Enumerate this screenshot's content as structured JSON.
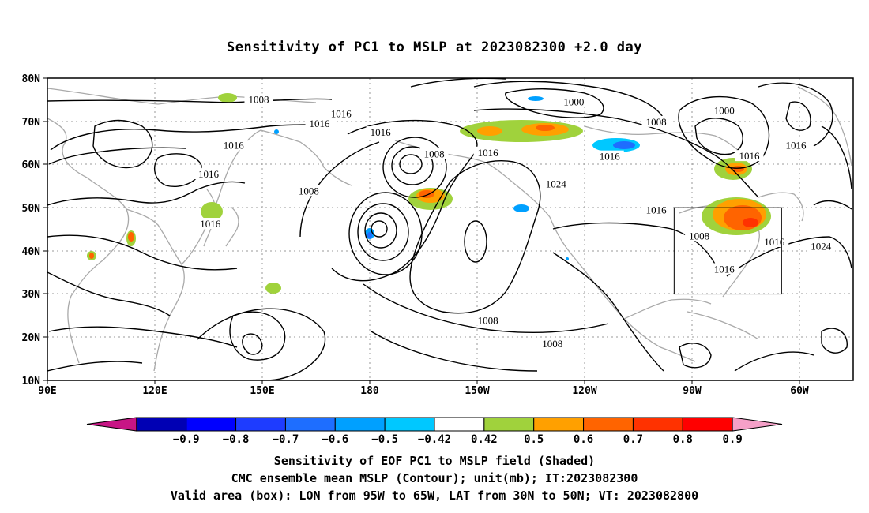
{
  "title": "Sensitivity of PC1 to MSLP at 2023082300 +2.0 day",
  "map": {
    "lat_labels": [
      "80N",
      "70N",
      "60N",
      "50N",
      "40N",
      "30N",
      "20N",
      "10N"
    ],
    "lon_labels": [
      "90E",
      "120E",
      "150E",
      "180",
      "150W",
      "120W",
      "90W",
      "60W"
    ],
    "lon_range_deg": [
      90,
      315
    ],
    "lat_range_deg": [
      10,
      80
    ],
    "grid": "dotted",
    "land_outline_color": "#a9a9a9",
    "contour_color": "#000000",
    "contour_labels": [
      {
        "text": "1016",
        "lon": 135,
        "lat": 57.5
      },
      {
        "text": "1016",
        "lon": 142,
        "lat": 64.2
      },
      {
        "text": "1016",
        "lon": 172,
        "lat": 71.5
      },
      {
        "text": "1016",
        "lon": 166,
        "lat": 69.2
      },
      {
        "text": "1016",
        "lon": 135.5,
        "lat": 46
      },
      {
        "text": "1016",
        "lon": 183,
        "lat": 67.2
      },
      {
        "text": "1008",
        "lon": 149,
        "lat": 74.8
      },
      {
        "text": "1008",
        "lon": 163,
        "lat": 53.6
      },
      {
        "text": "1008",
        "lon": 198,
        "lat": 62.2
      },
      {
        "text": "1016",
        "lon": 213,
        "lat": 62.5
      },
      {
        "text": "1024",
        "lon": 232,
        "lat": 55.2
      },
      {
        "text": "1000",
        "lon": 237,
        "lat": 74.2
      },
      {
        "text": "1008",
        "lon": 260,
        "lat": 69.6
      },
      {
        "text": "1000",
        "lon": 279,
        "lat": 72.2
      },
      {
        "text": "1008",
        "lon": 272,
        "lat": 43.2
      },
      {
        "text": "1016",
        "lon": 247,
        "lat": 61.6
      },
      {
        "text": "1016",
        "lon": 286,
        "lat": 61.7
      },
      {
        "text": "1016",
        "lon": 260,
        "lat": 49.2
      },
      {
        "text": "1016",
        "lon": 299,
        "lat": 64.2
      },
      {
        "text": "1016",
        "lon": 293,
        "lat": 41.8
      },
      {
        "text": "1024",
        "lon": 306,
        "lat": 40.8
      },
      {
        "text": "1016",
        "lon": 279,
        "lat": 35.5
      },
      {
        "text": "1008",
        "lon": 213,
        "lat": 23.6
      },
      {
        "text": "1008",
        "lon": 231,
        "lat": 18.2
      }
    ],
    "valid_box": {
      "lon_min": 265,
      "lon_max": 295,
      "lat_min": 30,
      "lat_max": 50
    }
  },
  "colorbar": {
    "tick_labels": [
      "-0.9",
      "-0.8",
      "-0.7",
      "-0.6",
      "-0.5",
      "-0.42",
      "0.42",
      "0.5",
      "0.6",
      "0.7",
      "0.8",
      "0.9"
    ],
    "colors": [
      "#c71585",
      "#0000b4",
      "#0000ff",
      "#1e3cff",
      "#1e6eff",
      "#00a0ff",
      "#00c8ff",
      "#ffffff",
      "#a0d23c",
      "#ffa000",
      "#ff6400",
      "#ff3200",
      "#ff0000",
      "#f5a0c8"
    ]
  },
  "captions": {
    "line1": "Sensitivity of EOF PC1 to MSLP field (Shaded)",
    "line2": "CMC ensemble mean MSLP (Contour); unit(mb); IT:2023082300",
    "line3": "Valid area (box): LON from 95W to 65W, LAT from 30N to 50N; VT: 2023082800"
  }
}
